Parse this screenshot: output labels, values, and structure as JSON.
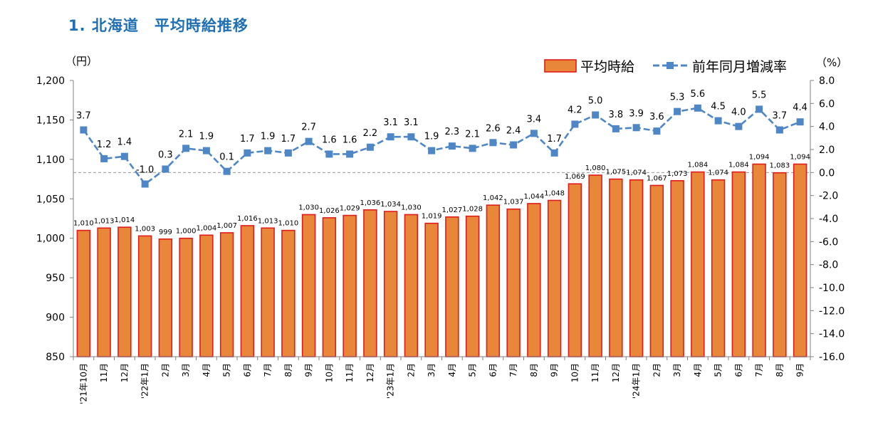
{
  "title": "1.  北海道　平均時給推移",
  "chart_data": {
    "type": "bar",
    "categories": [
      "'21年10月",
      "11月",
      "12月",
      "'22年1月",
      "2月",
      "3月",
      "4月",
      "5月",
      "6月",
      "7月",
      "8月",
      "9月",
      "10月",
      "11月",
      "12月",
      "'23年1月",
      "2月",
      "3月",
      "4月",
      "5月",
      "6月",
      "7月",
      "8月",
      "9月",
      "10月",
      "11月",
      "12月",
      "'24年1月",
      "2月",
      "3月",
      "4月",
      "5月",
      "6月",
      "7月",
      "8月",
      "9月"
    ],
    "series": [
      {
        "name": "平均時給",
        "type": "bar",
        "axis": "left",
        "color": "#e8873a",
        "edge_color": "#e11b1b",
        "values": [
          1010,
          1013,
          1014,
          1003,
          999,
          1000,
          1004,
          1007,
          1016,
          1013,
          1010,
          1030,
          1026,
          1029,
          1036,
          1034,
          1030,
          1019,
          1027,
          1028,
          1042,
          1037,
          1044,
          1048,
          1069,
          1080,
          1075,
          1074,
          1067,
          1073,
          1084,
          1074,
          1084,
          1094,
          1083,
          1094
        ],
        "labels": [
          "1,010",
          "1,013",
          "1,014",
          "1,003",
          "999",
          "1,000",
          "1,004",
          "1,007",
          "1,016",
          "1,013",
          "1,010",
          "1,030",
          "1,026",
          "1,029",
          "1,036",
          "1,034",
          "1,030",
          "1,019",
          "1,027",
          "1,028",
          "1,042",
          "1,037",
          "1,044",
          "1,048",
          "1,069",
          "1,080",
          "1,075",
          "1,074",
          "1,067",
          "1,073",
          "1,084",
          "1,074",
          "1,084",
          "1,094",
          "1,083",
          "1,094"
        ]
      },
      {
        "name": "前年同月増減率",
        "type": "line",
        "axis": "right",
        "color": "#4f86c6",
        "values": [
          3.7,
          1.2,
          1.4,
          -1.0,
          0.3,
          2.1,
          1.9,
          0.1,
          1.7,
          1.9,
          1.7,
          2.7,
          1.6,
          1.6,
          2.2,
          3.1,
          3.1,
          1.9,
          2.3,
          2.1,
          2.6,
          2.4,
          3.4,
          1.7,
          4.2,
          5.0,
          3.8,
          3.9,
          3.6,
          5.3,
          5.6,
          4.5,
          4.0,
          5.5,
          3.7,
          4.4
        ],
        "labels": [
          "3.7",
          "1.2",
          "1.4",
          "-1.0",
          "0.3",
          "2.1",
          "1.9",
          "0.1",
          "1.7",
          "1.9",
          "1.7",
          "2.7",
          "1.6",
          "1.6",
          "2.2",
          "3.1",
          "3.1",
          "1.9",
          "2.3",
          "2.1",
          "2.6",
          "2.4",
          "3.4",
          "1.7",
          "4.2",
          "5.0",
          "3.8",
          "3.9",
          "3.6",
          "5.3",
          "5.6",
          "4.5",
          "4.0",
          "5.5",
          "3.7",
          "4.4"
        ]
      }
    ],
    "y_left": {
      "unit": "（円）",
      "range": [
        850,
        1200
      ],
      "ticks": [
        850,
        900,
        950,
        1000,
        1050,
        1100,
        1150,
        1200
      ],
      "tick_labels": [
        "850",
        "900",
        "950",
        "1,000",
        "1,050",
        "1,100",
        "1,150",
        "1,200"
      ]
    },
    "y_right": {
      "unit": "（%）",
      "range": [
        -16,
        8
      ],
      "ticks": [
        -16,
        -14,
        -12,
        -10,
        -8,
        -6,
        -4,
        -2,
        0,
        2,
        4,
        6,
        8
      ],
      "tick_labels": [
        "-16.0",
        "-14.0",
        "-12.0",
        "-10.0",
        "-8.0",
        "-6.0",
        "-4.0",
        "-2.0",
        "0.0",
        "2.0",
        "4.0",
        "6.0",
        "8.0"
      ]
    },
    "zero_line": {
      "axis": "right",
      "value": 0,
      "style": "dashed"
    },
    "legend": {
      "placement": "top-right",
      "entries": [
        "平均時給",
        "前年同月増減率"
      ]
    },
    "grid": false
  }
}
